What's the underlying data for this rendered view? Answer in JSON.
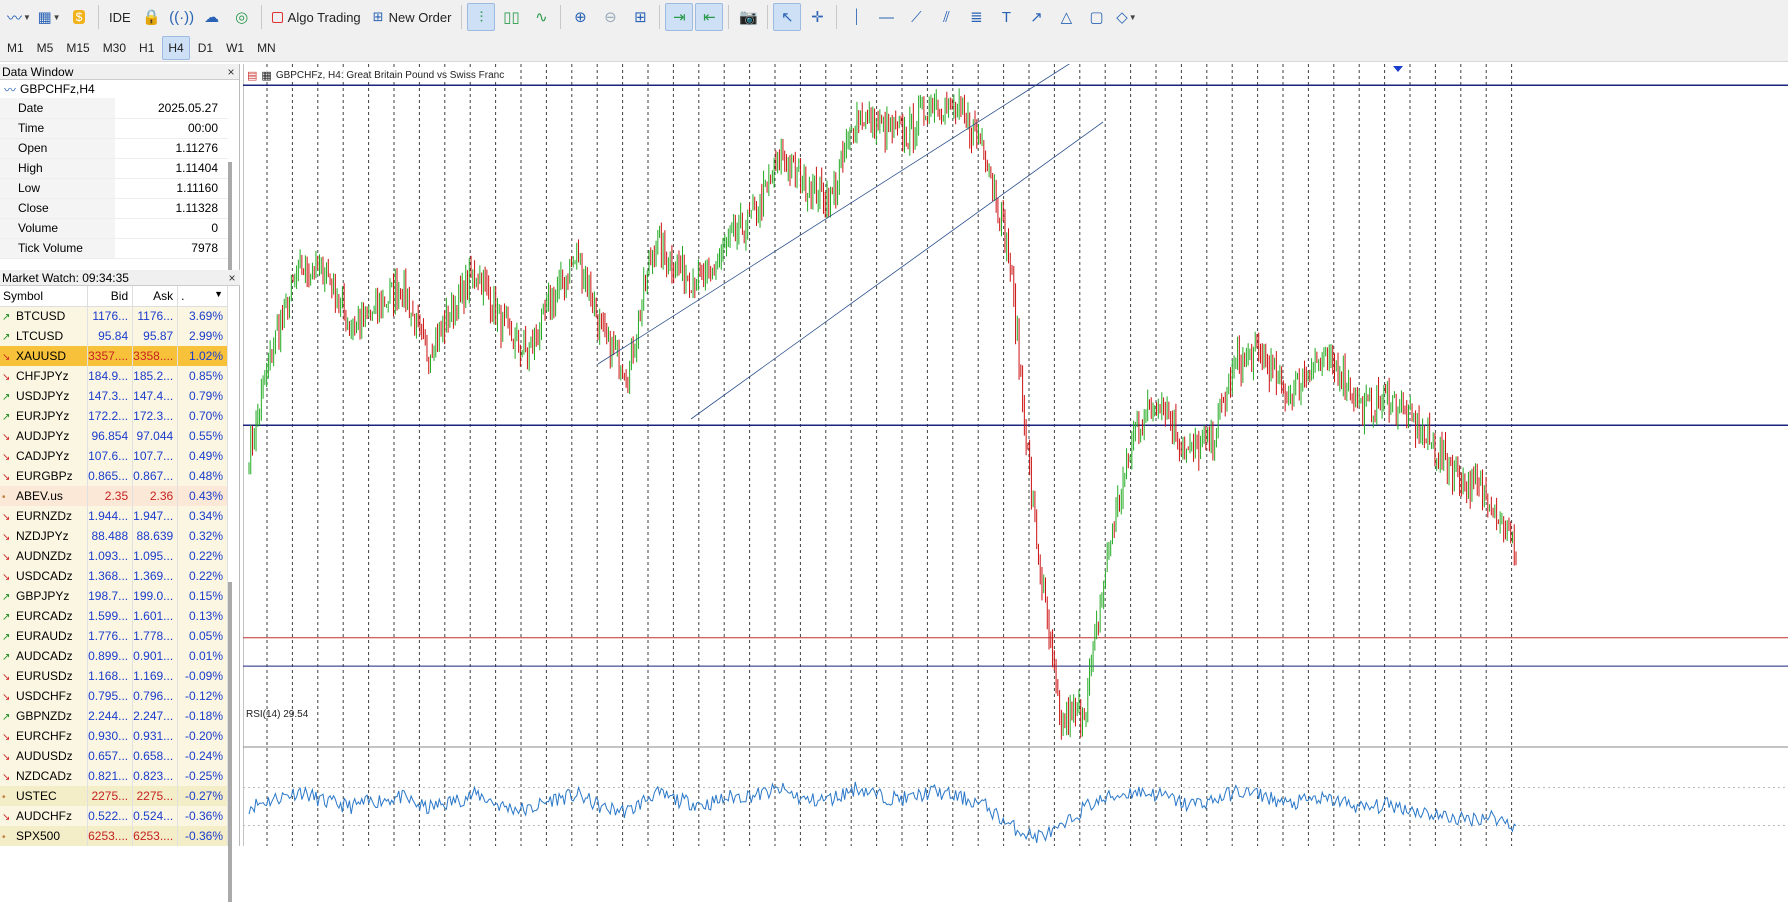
{
  "toolbar": {
    "ide_label": "IDE",
    "algo_label": "Algo Trading",
    "order_label": "New Order"
  },
  "timeframes": [
    "M1",
    "M5",
    "M15",
    "M30",
    "H1",
    "H4",
    "D1",
    "W1",
    "MN"
  ],
  "active_timeframe": "H4",
  "data_window": {
    "title": "Data Window",
    "symbol": "GBPCHFz,H4",
    "rows": [
      {
        "k": "Date",
        "v": "2025.05.27"
      },
      {
        "k": "Time",
        "v": "00:00"
      },
      {
        "k": "Open",
        "v": "1.11276"
      },
      {
        "k": "High",
        "v": "1.11404"
      },
      {
        "k": "Low",
        "v": "1.11160"
      },
      {
        "k": "Close",
        "v": "1.11328"
      },
      {
        "k": "Volume",
        "v": "0"
      },
      {
        "k": "Tick Volume",
        "v": "7978"
      }
    ]
  },
  "market_watch": {
    "title": "Market Watch: 09:34:35",
    "headers": {
      "symbol": "Symbol",
      "bid": "Bid",
      "ask": "Ask",
      "chg": "."
    },
    "rows": [
      {
        "s": "BTCUSD",
        "b": "1176...",
        "a": "1176...",
        "c": "3.69%",
        "d": "up",
        "bg": "#fbf6e2"
      },
      {
        "s": "LTCUSD",
        "b": "95.84",
        "a": "95.87",
        "c": "2.99%",
        "d": "up",
        "bg": "#fbf6e2"
      },
      {
        "s": "XAUUSD",
        "b": "3357....",
        "a": "3358....",
        "c": "1.02%",
        "d": "dn",
        "bg": "#f7c23a"
      },
      {
        "s": "CHFJPYz",
        "b": "184.9...",
        "a": "185.2...",
        "c": "0.85%",
        "d": "dn",
        "bg": "#fbf6e2"
      },
      {
        "s": "USDJPYz",
        "b": "147.3...",
        "a": "147.4...",
        "c": "0.79%",
        "d": "up",
        "bg": "#fbf6e2"
      },
      {
        "s": "EURJPYz",
        "b": "172.2...",
        "a": "172.3...",
        "c": "0.70%",
        "d": "up",
        "bg": "#fbf6e2"
      },
      {
        "s": "AUDJPYz",
        "b": "96.854",
        "a": "97.044",
        "c": "0.55%",
        "d": "dn",
        "bg": "#fbf6e2"
      },
      {
        "s": "CADJPYz",
        "b": "107.6...",
        "a": "107.7...",
        "c": "0.49%",
        "d": "dn",
        "bg": "#fbf6e2"
      },
      {
        "s": "EURGBPz",
        "b": "0.865...",
        "a": "0.867...",
        "c": "0.48%",
        "d": "dn",
        "bg": "#fbf6e2"
      },
      {
        "s": "ABEV.us",
        "b": "2.35",
        "a": "2.36",
        "c": "0.43%",
        "d": "nt",
        "bg": "#fbe8d6"
      },
      {
        "s": "EURNZDz",
        "b": "1.944...",
        "a": "1.947...",
        "c": "0.34%",
        "d": "dn",
        "bg": "#fbf6e2"
      },
      {
        "s": "NZDJPYz",
        "b": "88.488",
        "a": "88.639",
        "c": "0.32%",
        "d": "dn",
        "bg": "#fbf6e2"
      },
      {
        "s": "AUDNZDz",
        "b": "1.093...",
        "a": "1.095...",
        "c": "0.22%",
        "d": "dn",
        "bg": "#fbf6e2"
      },
      {
        "s": "USDCADz",
        "b": "1.368...",
        "a": "1.369...",
        "c": "0.22%",
        "d": "dn",
        "bg": "#fbf6e2"
      },
      {
        "s": "GBPJPYz",
        "b": "198.7...",
        "a": "199.0...",
        "c": "0.15%",
        "d": "up",
        "bg": "#fbf6e2"
      },
      {
        "s": "EURCADz",
        "b": "1.599...",
        "a": "1.601...",
        "c": "0.13%",
        "d": "up",
        "bg": "#fbf6e2"
      },
      {
        "s": "EURAUDz",
        "b": "1.776...",
        "a": "1.778...",
        "c": "0.05%",
        "d": "up",
        "bg": "#fbf6e2"
      },
      {
        "s": "AUDCADz",
        "b": "0.899...",
        "a": "0.901...",
        "c": "0.01%",
        "d": "up",
        "bg": "#fbf6e2"
      },
      {
        "s": "EURUSDz",
        "b": "1.168...",
        "a": "1.169...",
        "c": "-0.09%",
        "d": "dn",
        "bg": "#fbf6e2"
      },
      {
        "s": "USDCHFz",
        "b": "0.795...",
        "a": "0.796...",
        "c": "-0.12%",
        "d": "dn",
        "bg": "#fbf6e2"
      },
      {
        "s": "GBPNZDz",
        "b": "2.244...",
        "a": "2.247...",
        "c": "-0.18%",
        "d": "up",
        "bg": "#fbf6e2"
      },
      {
        "s": "EURCHFz",
        "b": "0.930...",
        "a": "0.931...",
        "c": "-0.20%",
        "d": "dn",
        "bg": "#fbf6e2"
      },
      {
        "s": "AUDUSDz",
        "b": "0.657...",
        "a": "0.658...",
        "c": "-0.24%",
        "d": "dn",
        "bg": "#fbf6e2"
      },
      {
        "s": "NZDCADz",
        "b": "0.821...",
        "a": "0.823...",
        "c": "-0.25%",
        "d": "dn",
        "bg": "#fbf6e2"
      },
      {
        "s": "USTEC",
        "b": "2275...",
        "a": "2275...",
        "c": "-0.27%",
        "d": "nt",
        "bg": "#f3edc8"
      },
      {
        "s": "AUDCHFz",
        "b": "0.522...",
        "a": "0.524...",
        "c": "-0.36%",
        "d": "dn",
        "bg": "#fbf6e2"
      },
      {
        "s": "SPX500",
        "b": "6253....",
        "a": "6253....",
        "c": "-0.36%",
        "d": "nt",
        "bg": "#f3edc8"
      }
    ]
  },
  "chart": {
    "title": "GBPCHFz, H4: Great Britain Pound vs Swiss Franc",
    "rsi_label": "RSI(14) 29.54",
    "colors": {
      "bull": "#22aa22",
      "bear": "#cc1111",
      "hline": "#1a237e",
      "rsi": "#2a78c8"
    }
  },
  "chart_data": {
    "type": "line",
    "title": "GBPCHFz, H4: Great Britain Pound vs Swiss Franc",
    "series": [
      {
        "name": "GBPCHFz",
        "values": [
          1.111,
          1.119,
          1.124,
          1.124,
          1.12,
          1.121,
          1.123,
          1.118,
          1.121,
          1.124,
          1.12,
          1.118,
          1.122,
          1.125,
          1.119,
          1.117,
          1.126,
          1.124,
          1.123,
          1.126,
          1.128,
          1.132,
          1.13,
          1.129,
          1.135,
          1.134,
          1.1335,
          1.136,
          1.135,
          1.133,
          1.125,
          1.106,
          1.092,
          1.093,
          1.105,
          1.113,
          1.115,
          1.111,
          1.112,
          1.1175,
          1.118,
          1.115,
          1.1175,
          1.117,
          1.114,
          1.115,
          1.113,
          1.111,
          1.109,
          1.108,
          1.104
        ]
      },
      {
        "name": "RSI(14)",
        "values": [
          50,
          58,
          66,
          55,
          50,
          56,
          60,
          48,
          55,
          63,
          50,
          46,
          58,
          62,
          48,
          45,
          64,
          56,
          52,
          60,
          62,
          68,
          56,
          58,
          70,
          60,
          58,
          66,
          60,
          52,
          30,
          18,
          25,
          50,
          60,
          66,
          62,
          52,
          56,
          66,
          62,
          52,
          58,
          56,
          48,
          52,
          46,
          40,
          36,
          40,
          29.54
        ]
      }
    ],
    "hlines": [
      1.137,
      1.113,
      1.098,
      1.096
    ],
    "grid": true
  }
}
